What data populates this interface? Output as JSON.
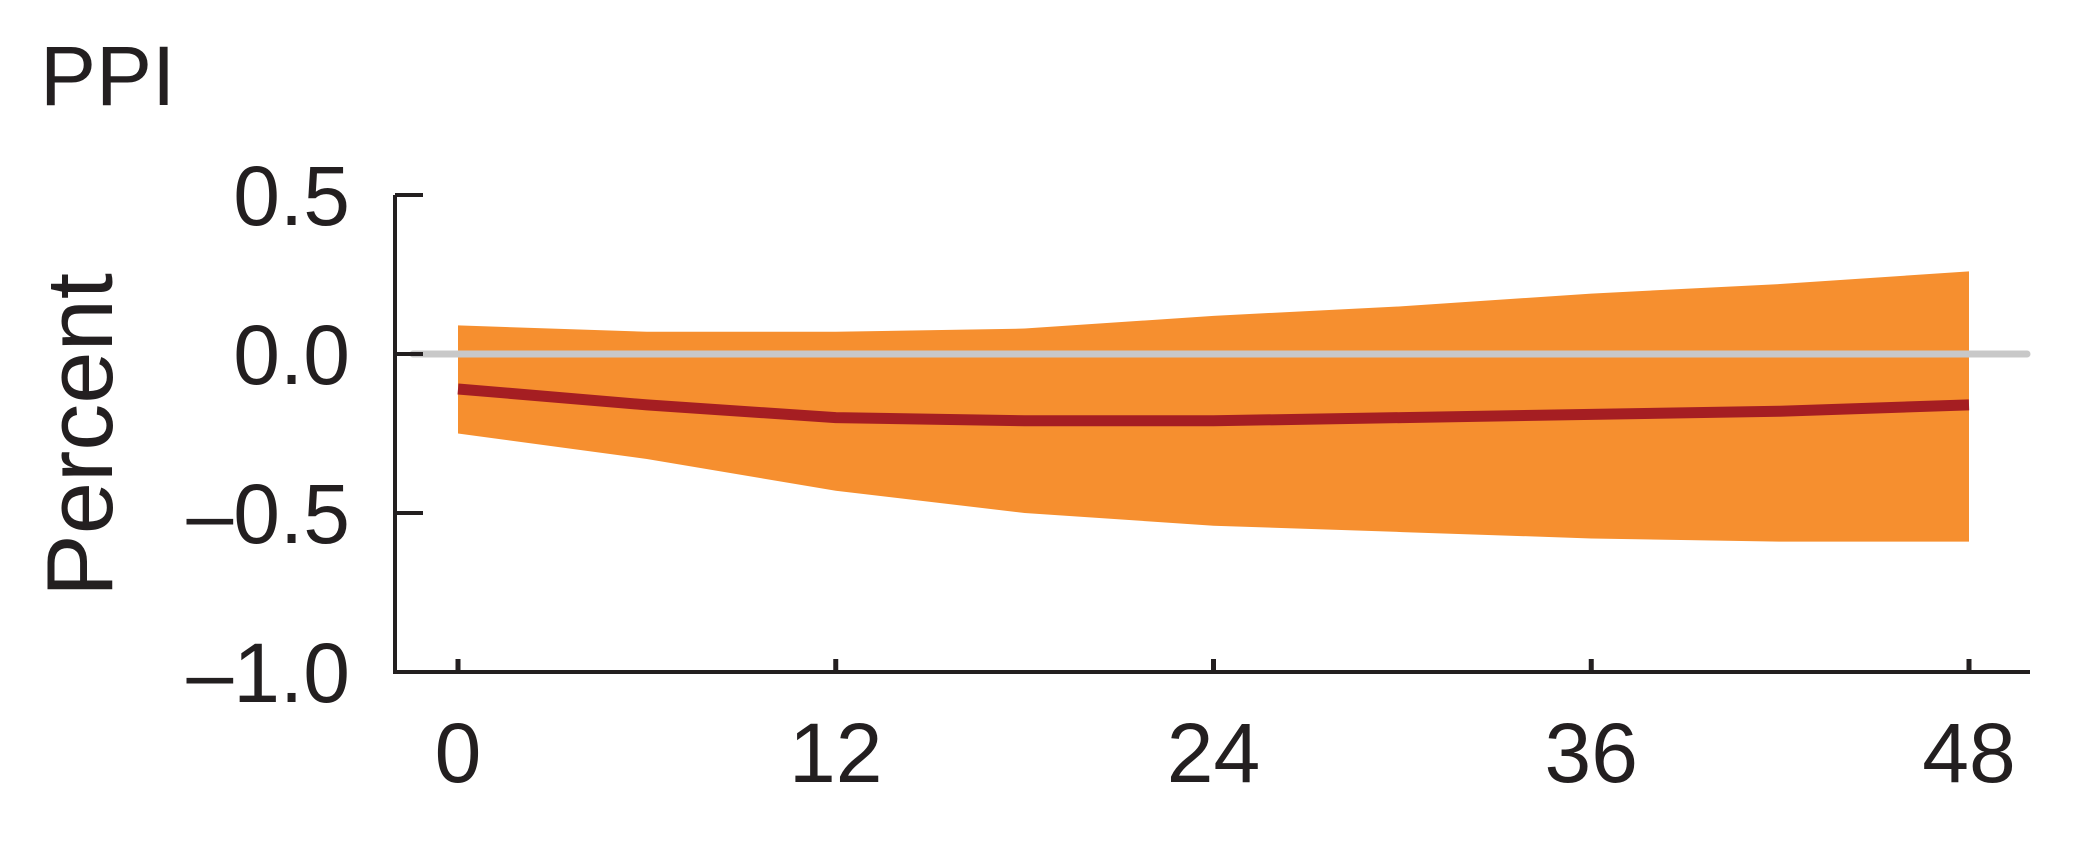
{
  "chart_data": {
    "type": "area",
    "title": "PPI",
    "xlabel": "",
    "ylabel": "Percent",
    "xlim": [
      0,
      48
    ],
    "ylim": [
      -1.0,
      0.5
    ],
    "xticks": [
      0,
      12,
      24,
      36,
      48
    ],
    "xtick_labels": [
      "0",
      "12",
      "24",
      "36",
      "48"
    ],
    "yticks": [
      0.5,
      0.0,
      -0.5,
      -1.0
    ],
    "ytick_labels": [
      "0.5",
      "0.0",
      "–0.5",
      "–1.0"
    ],
    "grid": false,
    "reference_line_y": 0.0,
    "x": [
      0,
      6,
      12,
      18,
      24,
      30,
      36,
      42,
      48
    ],
    "series": [
      {
        "role": "median",
        "values": [
          -0.11,
          -0.16,
          -0.2,
          -0.21,
          -0.21,
          -0.2,
          -0.19,
          -0.18,
          -0.16
        ]
      },
      {
        "role": "upper_band",
        "values": [
          0.09,
          0.07,
          0.07,
          0.08,
          0.12,
          0.15,
          0.19,
          0.22,
          0.26
        ]
      },
      {
        "role": "lower_band",
        "values": [
          -0.25,
          -0.33,
          -0.43,
          -0.5,
          -0.54,
          -0.56,
          -0.58,
          -0.59,
          -0.59
        ]
      }
    ],
    "colors": {
      "band": "#f68f2f",
      "median": "#a51e22",
      "zero_line": "#c8c8c8",
      "axis": "#231f20",
      "text": "#231f20"
    }
  }
}
